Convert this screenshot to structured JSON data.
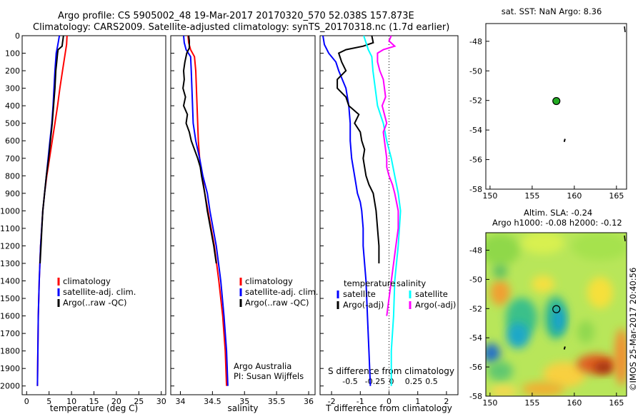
{
  "header": {
    "line1": "Argo profile: CS 5905002_48 19-Mar-2017 20170320_570 52.038S 157.873E",
    "line2": "Climatology: CARS2009. Satellite-adjusted climatology: synTS_20170318.nc (1.7d earlier)"
  },
  "colors": {
    "climatology": "#ff0000",
    "satellite": "#0000ff",
    "argo": "#000000",
    "salinity_sat": "#00ffff",
    "salinity_argo": "#ff00ff"
  },
  "chart_data": [
    {
      "type": "line",
      "xlabel": "temperature (deg C)",
      "xlim": [
        -1,
        31
      ],
      "ylim": [
        2050,
        0
      ],
      "xticks": [
        0,
        5,
        10,
        15,
        20,
        25,
        30
      ],
      "yticks": [
        0,
        100,
        200,
        300,
        400,
        500,
        600,
        700,
        800,
        900,
        1000,
        1100,
        1200,
        1300,
        1400,
        1500,
        1600,
        1700,
        1800,
        1900,
        2000
      ],
      "legend": [
        "climatology",
        "satellite-adj. clim.",
        "Argo(..raw -QC)"
      ],
      "series": [
        {
          "name": "climatology",
          "depth": [
            0,
            50,
            100,
            200,
            300,
            400,
            500,
            600,
            700,
            800,
            900,
            1000,
            1200,
            1400,
            1600,
            1800,
            2000
          ],
          "values": [
            9.0,
            8.9,
            8.6,
            8.0,
            7.4,
            6.9,
            6.3,
            5.7,
            5.1,
            4.5,
            4.0,
            3.6,
            3.1,
            2.8,
            2.6,
            2.5,
            2.4
          ]
        },
        {
          "name": "satellite-adj. clim.",
          "depth": [
            0,
            30,
            60,
            100,
            200,
            300,
            400,
            500,
            600,
            700,
            800,
            900,
            1000,
            1200,
            1400,
            1600,
            1800,
            2000
          ],
          "values": [
            7.3,
            7.1,
            6.9,
            6.6,
            6.3,
            6.1,
            5.9,
            5.6,
            5.2,
            4.8,
            4.4,
            4.0,
            3.6,
            3.1,
            2.8,
            2.6,
            2.5,
            2.4
          ]
        },
        {
          "name": "Argo(..raw -QC)",
          "depth": [
            0,
            20,
            40,
            60,
            80,
            100,
            150,
            200,
            300,
            400,
            500,
            600,
            700,
            800,
            900,
            1000,
            1100,
            1200,
            1300
          ],
          "values": [
            8.2,
            8.1,
            8.0,
            7.9,
            7.0,
            6.9,
            6.7,
            6.5,
            6.3,
            6.0,
            5.7,
            5.3,
            4.9,
            4.4,
            4.0,
            3.6,
            3.4,
            3.2,
            3.0
          ]
        }
      ]
    },
    {
      "type": "line",
      "xlabel": "salinity",
      "xlim": [
        33.85,
        36.1
      ],
      "ylim": [
        2050,
        0
      ],
      "xticks": [
        34,
        34.5,
        35,
        35.5,
        36
      ],
      "legend": [
        "climatology",
        "satellite-adj. clim.",
        "Argo(..raw -QC)"
      ],
      "annotation": [
        "Argo Australia",
        "PI: Susan Wijffels"
      ],
      "series": [
        {
          "name": "climatology",
          "depth": [
            0,
            40,
            80,
            120,
            200,
            300,
            400,
            500,
            600,
            700,
            800,
            900,
            1000,
            1200,
            1400,
            1600,
            1800,
            2000
          ],
          "values": [
            34.12,
            34.13,
            34.16,
            34.22,
            34.24,
            34.25,
            34.26,
            34.27,
            34.28,
            34.3,
            34.34,
            34.38,
            34.43,
            34.53,
            34.6,
            34.66,
            34.7,
            34.72
          ]
        },
        {
          "name": "satellite-adj. clim.",
          "depth": [
            0,
            40,
            80,
            120,
            200,
            300,
            400,
            500,
            600,
            700,
            800,
            900,
            1000,
            1200,
            1400,
            1600,
            1800,
            2000
          ],
          "values": [
            34.05,
            34.06,
            34.09,
            34.16,
            34.17,
            34.18,
            34.19,
            34.2,
            34.24,
            34.3,
            34.35,
            34.42,
            34.46,
            34.56,
            34.63,
            34.68,
            34.72,
            34.74
          ]
        },
        {
          "name": "Argo(..raw -QC)",
          "depth": [
            0,
            30,
            70,
            100,
            150,
            200,
            250,
            300,
            350,
            400,
            450,
            500,
            550,
            600,
            650,
            700,
            750,
            800,
            900,
            1000,
            1100,
            1200,
            1300
          ],
          "values": [
            34.13,
            34.14,
            34.14,
            34.1,
            34.07,
            34.05,
            34.06,
            34.04,
            34.08,
            34.05,
            34.11,
            34.09,
            34.14,
            34.17,
            34.22,
            34.27,
            34.31,
            34.33,
            34.38,
            34.42,
            34.47,
            34.52,
            34.56
          ]
        }
      ]
    },
    {
      "type": "line",
      "xlabel": "T difference from climatology",
      "xlabel2": "S difference from climatology",
      "xlim": [
        -2.4,
        2.4
      ],
      "ylim": [
        2050,
        0
      ],
      "xticks": [
        -2,
        -1,
        0,
        1,
        2
      ],
      "xticks2": [
        -0.5,
        -0.25,
        0,
        0.25,
        0.5
      ],
      "legend_temperature": {
        "title": "temperature",
        "items": [
          "satellite",
          "Argo(-adj)"
        ]
      },
      "legend_salinity": {
        "title": "salinity",
        "items": [
          "satellite",
          "Argo(-adj)"
        ]
      },
      "series": [
        {
          "name": "temperature satellite",
          "depth": [
            0,
            50,
            100,
            150,
            200,
            300,
            400,
            500,
            600,
            700,
            800,
            900,
            950,
            1000,
            1100,
            1200,
            1300,
            1400,
            1600,
            1800,
            2000
          ],
          "values": [
            -2.3,
            -2.25,
            -2.1,
            -1.85,
            -1.75,
            -1.5,
            -1.4,
            -1.35,
            -1.35,
            -1.3,
            -1.2,
            -1.1,
            -1.0,
            -0.95,
            -0.9,
            -0.9,
            -0.85,
            -0.8,
            -0.75,
            -0.7,
            -0.65
          ]
        },
        {
          "name": "temperature Argo(-adj)",
          "depth": [
            0,
            40,
            60,
            80,
            100,
            150,
            200,
            250,
            300,
            350,
            400,
            450,
            500,
            550,
            600,
            650,
            700,
            750,
            800,
            850,
            900,
            1000,
            1100,
            1200,
            1300
          ],
          "values": [
            -0.6,
            -0.55,
            -0.9,
            -1.5,
            -1.75,
            -1.65,
            -1.5,
            -1.8,
            -1.8,
            -1.5,
            -1.4,
            -1.05,
            -1.2,
            -1.0,
            -0.95,
            -0.85,
            -0.9,
            -0.85,
            -0.8,
            -0.7,
            -0.55,
            -0.45,
            -0.4,
            -0.35,
            -0.35
          ]
        },
        {
          "name": "salinity satellite",
          "depth": [
            0,
            40,
            80,
            120,
            200,
            300,
            400,
            500,
            600,
            700,
            800,
            900,
            1000,
            1200,
            1400,
            1600,
            1800,
            2000
          ],
          "values": [
            -0.22,
            -0.2,
            -0.18,
            -0.15,
            -0.14,
            -0.12,
            -0.1,
            -0.05,
            -0.02,
            0.02,
            0.05,
            0.08,
            0.1,
            0.08,
            0.05,
            0.04,
            0.02,
            0.02
          ]
        },
        {
          "name": "salinity Argo(-adj)",
          "depth": [
            0,
            30,
            60,
            80,
            100,
            150,
            200,
            250,
            300,
            350,
            400,
            450,
            500,
            550,
            600,
            650,
            700,
            750,
            800,
            850,
            900,
            1000,
            1100,
            1200,
            1300,
            1400,
            1500,
            1600
          ],
          "values": [
            0.02,
            0.0,
            0.05,
            -0.05,
            -0.1,
            -0.1,
            -0.08,
            -0.05,
            -0.04,
            -0.03,
            -0.06,
            -0.04,
            -0.02,
            -0.05,
            -0.04,
            -0.03,
            -0.02,
            -0.02,
            0.0,
            0.03,
            0.05,
            0.08,
            0.08,
            0.06,
            0.04,
            0.02,
            0.0,
            -0.02
          ]
        }
      ]
    },
    {
      "type": "scatter",
      "title": "sat. SST: NaN Argo: 8.36",
      "xlim": [
        149.5,
        166.2
      ],
      "ylim": [
        -58,
        -46.8
      ],
      "xticks": [
        150,
        155,
        160,
        165
      ],
      "yticks": [
        -48,
        -50,
        -52,
        -54,
        -56,
        -58
      ],
      "points": [
        {
          "x": 157.87,
          "y": -52.04
        }
      ]
    },
    {
      "type": "heatmap",
      "title": "Altim. SLA: -0.24",
      "subtitle": "Argo h1000: -0.08 h2000: -0.12",
      "side_label": "©IMOS 25-Mar-2017 20:40:56",
      "xlim": [
        149.5,
        166.2
      ],
      "ylim": [
        -58,
        -46.8
      ],
      "xticks": [
        150,
        155,
        160,
        165
      ],
      "yticks": [
        -48,
        -50,
        -52,
        -54,
        -56,
        -58
      ],
      "points": [
        {
          "x": 157.87,
          "y": -52.04
        }
      ]
    }
  ]
}
